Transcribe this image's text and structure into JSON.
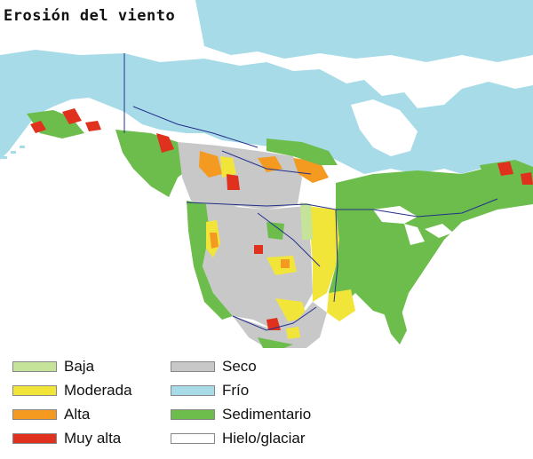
{
  "title": "Erosión del viento",
  "colors": {
    "ocean": "#ffffff",
    "frio": "#a7dbe8",
    "seco": "#c8c8c8",
    "sedimentario": "#6cbd4c",
    "baja": "#c6e39a",
    "moderada": "#f2e53a",
    "alta": "#f49a21",
    "muy_alta": "#e0301e",
    "hielo": "#ffffff",
    "borders": "#23308a"
  },
  "legend": {
    "left": [
      {
        "label": "Baja",
        "color": "#c6e39a",
        "icon": "swatch-baja"
      },
      {
        "label": "Moderada",
        "color": "#f2e53a",
        "icon": "swatch-moderada"
      },
      {
        "label": "Alta",
        "color": "#f49a21",
        "icon": "swatch-alta"
      },
      {
        "label": "Muy alta",
        "color": "#e0301e",
        "icon": "swatch-muy-alta"
      }
    ],
    "right": [
      {
        "label": "Seco",
        "color": "#c8c8c8",
        "icon": "swatch-seco"
      },
      {
        "label": "Frío",
        "color": "#a7dbe8",
        "icon": "swatch-frio"
      },
      {
        "label": "Sedimentario",
        "color": "#6cbd4c",
        "icon": "swatch-sedimentario"
      },
      {
        "label": "Hielo/glaciar",
        "color": "#ffffff",
        "icon": "swatch-hielo"
      }
    ]
  }
}
